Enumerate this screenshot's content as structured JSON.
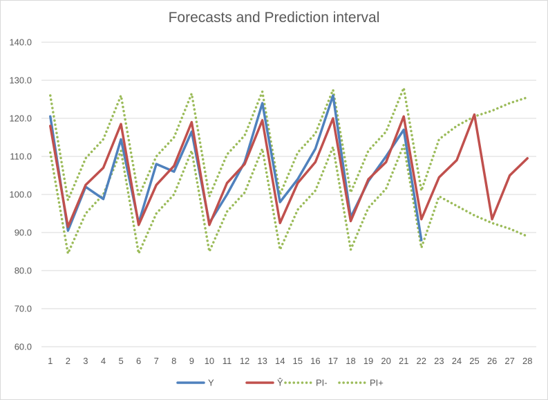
{
  "chart_data": {
    "type": "line",
    "title": "Forecasts and Prediction interval",
    "xlabel": "",
    "ylabel": "",
    "ylim": [
      60,
      140
    ],
    "y_ticks": [
      "60.0",
      "70.0",
      "80.0",
      "90.0",
      "100.0",
      "110.0",
      "120.0",
      "130.0",
      "140.0"
    ],
    "x": [
      1,
      2,
      3,
      4,
      5,
      6,
      7,
      8,
      9,
      10,
      11,
      12,
      13,
      14,
      15,
      16,
      17,
      18,
      19,
      20,
      21,
      22,
      23,
      24,
      25,
      26,
      27,
      28
    ],
    "grid": "horizontal",
    "legend_position": "bottom",
    "series": [
      {
        "name": "Y",
        "color": "#4f81bd",
        "style": "solid",
        "values": [
          120.5,
          90.5,
          102.0,
          98.8,
          114.5,
          92.5,
          108.0,
          106.0,
          116.5,
          92.5,
          100.0,
          108.5,
          124.0,
          98.0,
          104.0,
          112.0,
          126.0,
          94.0,
          103.5,
          110.0,
          117.0,
          88.0,
          null,
          null,
          null,
          null,
          null,
          null
        ]
      },
      {
        "name": "Ŷ",
        "color": "#c0504d",
        "style": "solid",
        "values": [
          118.0,
          91.5,
          102.5,
          107.0,
          118.5,
          92.0,
          102.5,
          107.5,
          119.0,
          92.0,
          103.0,
          108.0,
          119.5,
          92.5,
          103.0,
          108.5,
          120.0,
          93.0,
          104.0,
          108.5,
          120.5,
          93.5,
          104.5,
          109.0,
          121.0,
          93.5,
          105.0,
          109.5
        ]
      },
      {
        "name": "PI-",
        "color": "#9bbb59",
        "style": "dotted",
        "values": [
          111.0,
          84.5,
          95.0,
          100.0,
          111.5,
          84.5,
          95.0,
          100.0,
          111.5,
          85.0,
          95.5,
          100.5,
          112.0,
          85.5,
          96.0,
          101.0,
          112.5,
          85.5,
          96.5,
          101.5,
          113.0,
          86.0,
          99.5,
          97.0,
          94.5,
          92.5,
          91.0,
          89.0
        ]
      },
      {
        "name": "PI+",
        "color": "#9bbb59",
        "style": "dotted",
        "values": [
          126.0,
          98.5,
          109.5,
          114.5,
          126.0,
          99.5,
          110.0,
          115.0,
          126.5,
          99.5,
          110.5,
          115.5,
          127.0,
          100.0,
          111.0,
          116.0,
          127.5,
          100.5,
          111.5,
          116.5,
          128.0,
          101.0,
          114.5,
          118.0,
          120.5,
          122.0,
          124.0,
          125.5
        ]
      }
    ]
  }
}
